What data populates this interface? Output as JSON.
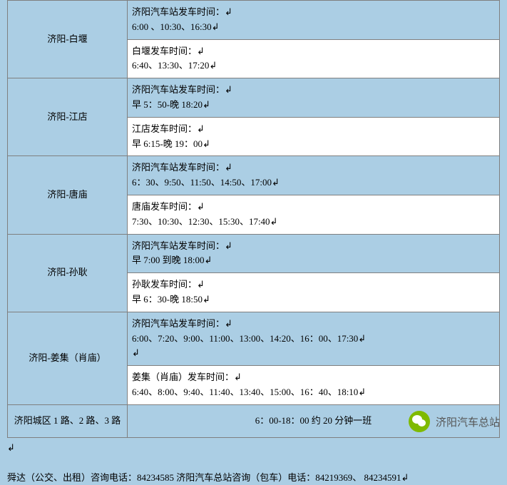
{
  "routes": [
    {
      "name": "济阳-白堰",
      "cells": [
        {
          "bg": "blue",
          "text": "济阳汽车站发车时间：↲\n6:00 、10:30、16:30↲"
        },
        {
          "bg": "white",
          "text": "白堰发车时间：↲\n6:40、13:30、17:20↲"
        }
      ]
    },
    {
      "name": "济阳-江店",
      "cells": [
        {
          "bg": "blue",
          "text": "济阳汽车站发车时间：↲\n早 5：50-晚 18:20↲"
        },
        {
          "bg": "white",
          "text": "江店发车时间：↲\n早 6:15-晚 19：00↲"
        }
      ]
    },
    {
      "name": "济阳-唐庙",
      "cells": [
        {
          "bg": "blue",
          "text": "济阳汽车站发车时间：↲\n6：30、9:50、11:50、14:50、17:00↲"
        },
        {
          "bg": "white",
          "text": "唐庙发车时间：↲\n7:30、10:30、12:30、15:30、17:40↲"
        }
      ]
    },
    {
      "name": "济阳-孙耿",
      "cells": [
        {
          "bg": "blue",
          "text": "济阳汽车站发车时间：↲\n早 7:00 到晚 18:00↲"
        },
        {
          "bg": "white",
          "text": "孙耿发车时间：↲\n早 6：30-晚 18:50↲"
        }
      ]
    },
    {
      "name": "济阳-姜集（肖庙）",
      "cells": [
        {
          "bg": "blue",
          "text": "济阳汽车站发车时间：↲\n6:00、7:20、9:00、11:00、13:00、14:20、16：00、17:30↲\n↲"
        },
        {
          "bg": "white",
          "text": "姜集（肖庙）发车时间：↲\n6:40、8:00、9:40、11:40、13:40、15:00、16：40、18:10↲"
        }
      ]
    }
  ],
  "bus_row": {
    "route_label": "济阳城区 1 路、2 路、3 路",
    "schedule": "6：00-18：00 约 20 分钟一班"
  },
  "after_mark": "↲",
  "footer": "舜达（公交、出租）咨询电话：84234585   济阳汽车总站咨询（包车）电话：84219369、 84234591↲",
  "wechat_name": "济阳汽车总站"
}
